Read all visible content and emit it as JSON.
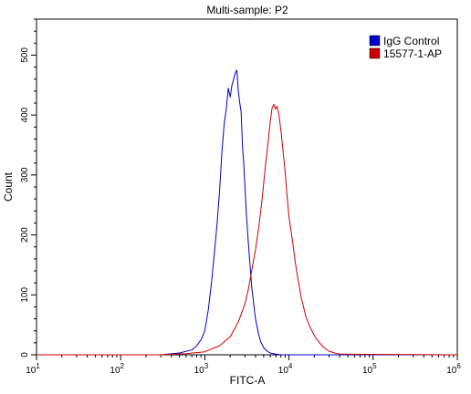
{
  "chart_data": {
    "type": "line",
    "title": "Multi-sample: P2",
    "xlabel": "FITC-A",
    "ylabel": "Count",
    "x_scale": "log",
    "xlim": [
      10,
      1000000
    ],
    "ylim": [
      0,
      560
    ],
    "y_ticks": [
      0,
      100,
      200,
      300,
      400,
      500
    ],
    "x_ticks": [
      {
        "value": 10,
        "base": "10",
        "exp": "1"
      },
      {
        "value": 100,
        "base": "10",
        "exp": "2"
      },
      {
        "value": 1000,
        "base": "10",
        "exp": "3"
      },
      {
        "value": 10000,
        "base": "10",
        "exp": "4"
      },
      {
        "value": 100000,
        "base": "10",
        "exp": "5"
      },
      {
        "value": 1000000,
        "base": "10",
        "exp": "6"
      }
    ],
    "grid": false,
    "legend_position": "top-right",
    "series": [
      {
        "name": "IgG Control",
        "color": "#0000cc",
        "x": [
          10,
          100,
          300,
          500,
          700,
          800,
          900,
          1000,
          1100,
          1200,
          1300,
          1400,
          1500,
          1600,
          1700,
          1800,
          1900,
          2000,
          2100,
          2200,
          2300,
          2400,
          2500,
          2600,
          2700,
          2800,
          2900,
          3000,
          3100,
          3200,
          3400,
          3600,
          3800,
          4000,
          4300,
          4600,
          5000,
          5500,
          6000,
          7000,
          8000,
          10000,
          1000000
        ],
        "y": [
          0,
          0,
          0,
          3,
          8,
          15,
          25,
          40,
          75,
          120,
          170,
          220,
          275,
          340,
          385,
          410,
          445,
          430,
          450,
          460,
          470,
          475,
          440,
          420,
          405,
          350,
          320,
          280,
          240,
          210,
          160,
          115,
          85,
          60,
          38,
          22,
          12,
          6,
          3,
          1,
          0,
          0,
          0
        ]
      },
      {
        "name": "15577-1-AP",
        "color": "#cc0000",
        "x": [
          10,
          100,
          300,
          600,
          1000,
          1500,
          2000,
          2500,
          3000,
          3300,
          3600,
          4000,
          4400,
          4800,
          5200,
          5600,
          6000,
          6300,
          6600,
          6900,
          7200,
          7600,
          8000,
          8500,
          9000,
          9500,
          10000,
          11000,
          12000,
          13000,
          14000,
          15000,
          16000,
          18000,
          20000,
          23000,
          26000,
          30000,
          35000,
          40000,
          1000000
        ],
        "y": [
          0,
          0,
          0,
          2,
          5,
          15,
          30,
          55,
          85,
          110,
          140,
          175,
          215,
          260,
          310,
          350,
          390,
          412,
          418,
          410,
          415,
          400,
          375,
          340,
          305,
          265,
          230,
          190,
          150,
          120,
          95,
          78,
          62,
          45,
          32,
          20,
          12,
          6,
          3,
          1,
          0
        ]
      }
    ]
  }
}
